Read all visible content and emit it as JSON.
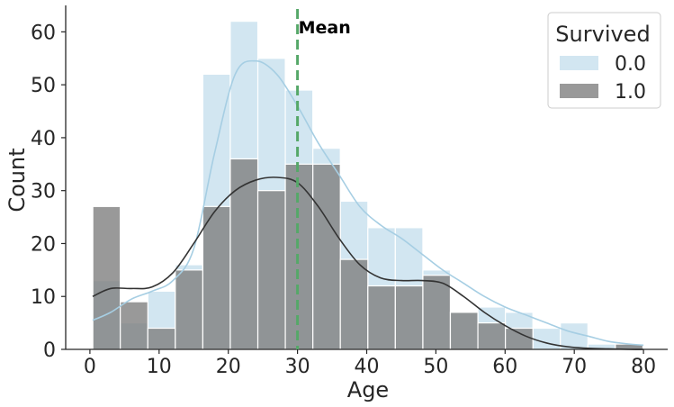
{
  "chart_data": {
    "type": "histogram",
    "title": "",
    "xlabel": "Age",
    "ylabel": "Count",
    "xlim": [
      -3.5,
      83.5
    ],
    "ylim": [
      0,
      65
    ],
    "xticks": [
      0,
      10,
      20,
      30,
      40,
      50,
      60,
      70,
      80
    ],
    "yticks": [
      0,
      10,
      20,
      30,
      40,
      50,
      60
    ],
    "bins": [
      0.42,
      4.39,
      8.37,
      12.34,
      16.32,
      20.29,
      24.27,
      28.24,
      32.22,
      36.19,
      40.17,
      44.14,
      48.12,
      52.09,
      56.07,
      60.04,
      64.02,
      67.99,
      71.97,
      75.94,
      79.92
    ],
    "series": [
      {
        "name": "0.0",
        "color": "#a6cee3",
        "values": [
          13,
          5,
          11,
          16,
          52,
          62,
          55,
          49,
          38,
          28,
          23,
          23,
          15,
          7,
          8,
          7,
          4,
          5,
          1,
          1
        ],
        "kde_x": [
          0.4,
          3,
          6,
          9,
          12,
          15,
          18,
          21,
          24,
          27,
          30,
          33,
          36,
          39,
          42,
          45,
          48,
          51,
          54,
          57,
          60,
          63,
          66,
          69,
          72,
          75,
          78,
          80
        ],
        "kde_y": [
          5.5,
          7,
          9.5,
          11,
          13,
          19,
          37,
          52,
          54.5,
          52,
          46,
          39,
          33,
          27,
          23.5,
          21,
          18,
          15,
          12.5,
          10,
          8,
          6.5,
          5,
          3.5,
          2.5,
          1.5,
          1,
          0.8
        ]
      },
      {
        "name": "1.0",
        "color": "#7f7f7f",
        "values": [
          27,
          9,
          4,
          15,
          27,
          36,
          30,
          35,
          35,
          17,
          12,
          12,
          14,
          7,
          5,
          4,
          0,
          0,
          0,
          1
        ],
        "kde_x": [
          0.4,
          3,
          6,
          9,
          12,
          15,
          18,
          21,
          24,
          27,
          30,
          33,
          36,
          39,
          42,
          45,
          48,
          51,
          54,
          57,
          60,
          63,
          66,
          69,
          72,
          75,
          78,
          80
        ],
        "kde_y": [
          10,
          11.5,
          11.5,
          11.8,
          14.5,
          20,
          26,
          30,
          32,
          32.5,
          31.5,
          27,
          21,
          16,
          13.5,
          13,
          13,
          12.5,
          10,
          7,
          4.5,
          2.5,
          1.2,
          0.5,
          0.2,
          0.1,
          0,
          0
        ]
      }
    ],
    "reference_line": {
      "x": 30,
      "label": "Mean",
      "color": "#55a868"
    },
    "legend": {
      "title": "Survived",
      "position": "top-right",
      "entries": [
        "0.0",
        "1.0"
      ]
    }
  }
}
